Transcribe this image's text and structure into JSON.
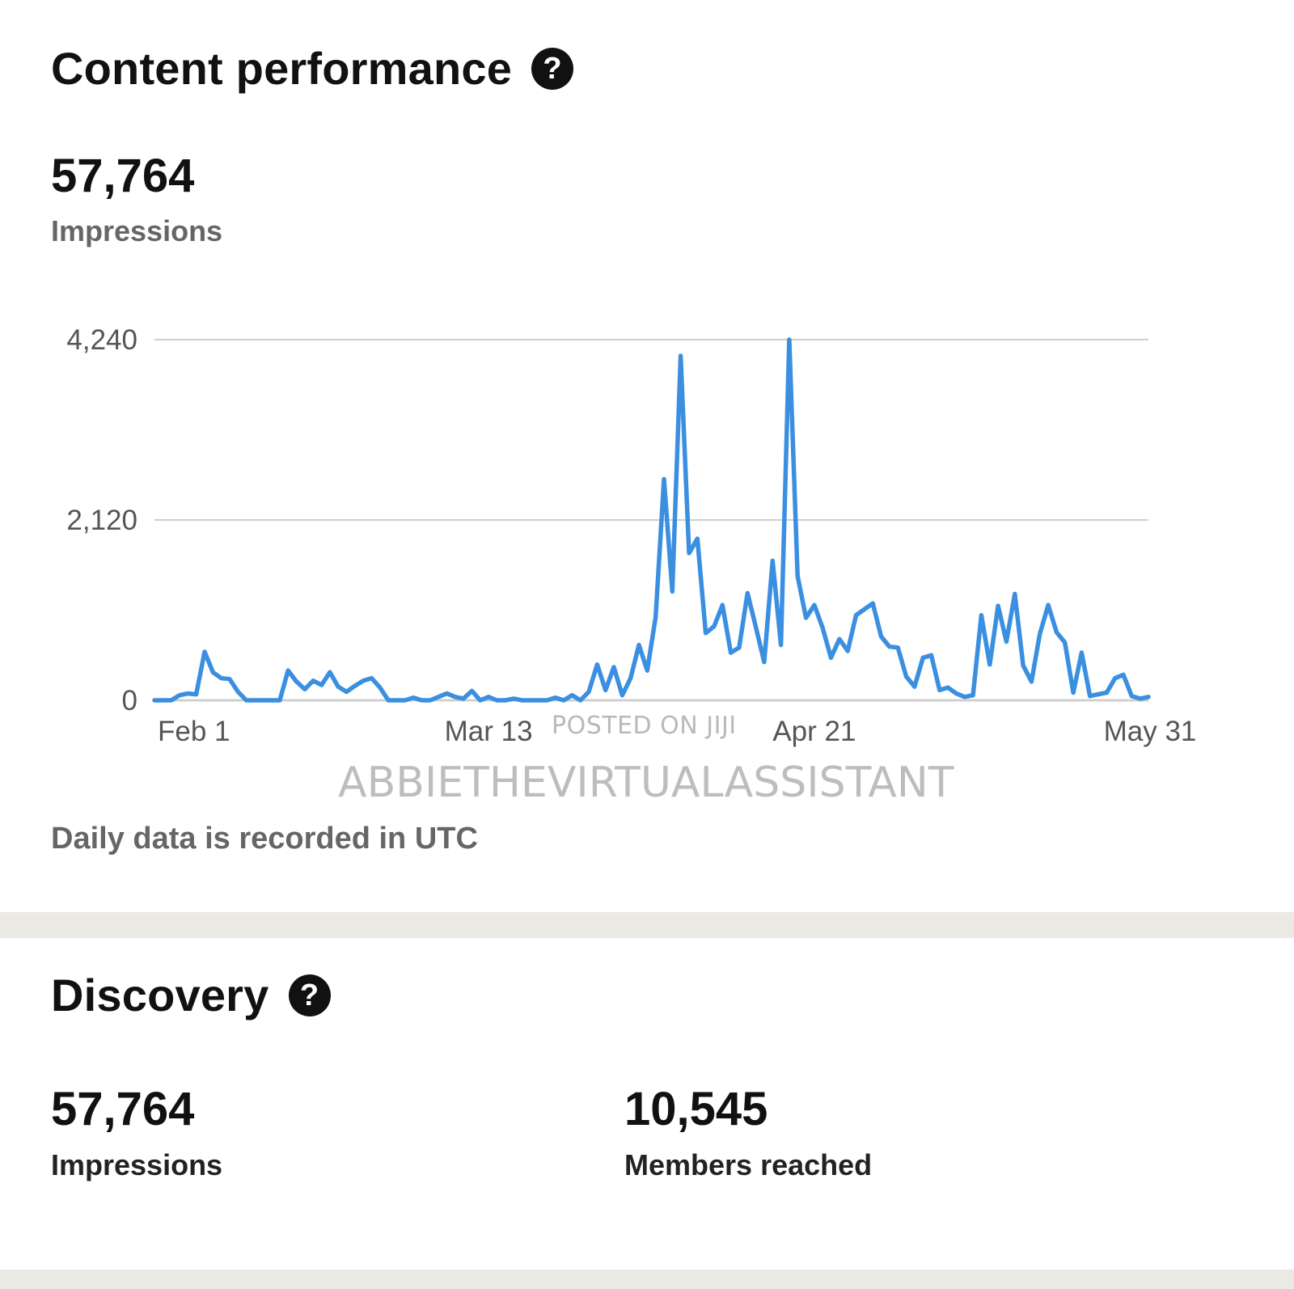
{
  "content_performance": {
    "title": "Content performance",
    "help_icon": "?",
    "impressions_value": "57,764",
    "impressions_label": "Impressions",
    "footnote": "Daily data is recorded in UTC"
  },
  "watermark": {
    "line1": "POSTED ON JIJI",
    "line2": "ABBIETHEVIRTUALASSISTANT"
  },
  "discovery": {
    "title": "Discovery",
    "help_icon": "?",
    "impressions_value": "57,764",
    "impressions_label": "Impressions",
    "members_value": "10,545",
    "members_label": "Members reached"
  },
  "colors": {
    "line": "#3b8fe0",
    "grid": "#cfcfcf",
    "separator": "#ebe9e4"
  },
  "chart_data": {
    "type": "line",
    "title": "",
    "xlabel": "",
    "ylabel": "",
    "y_ticks": [
      {
        "value": 0,
        "label": "0"
      },
      {
        "value": 2120,
        "label": "2,120"
      },
      {
        "value": 4240,
        "label": "4,240"
      }
    ],
    "x_ticks": [
      {
        "day": 0,
        "label": "Feb 1"
      },
      {
        "day": 40,
        "label": "Mar 13"
      },
      {
        "day": 79,
        "label": "Apr 21"
      },
      {
        "day": 119,
        "label": "May 31"
      }
    ],
    "ylim": [
      0,
      4240
    ],
    "grid": true,
    "legend": "none",
    "series": [
      {
        "values": [
          0,
          0,
          0,
          60,
          80,
          70,
          570,
          330,
          260,
          250,
          100,
          0,
          0,
          0,
          0,
          0,
          350,
          220,
          130,
          230,
          180,
          330,
          160,
          100,
          170,
          230,
          260,
          150,
          0,
          0,
          0,
          30,
          0,
          0,
          40,
          80,
          40,
          20,
          110,
          0,
          40,
          0,
          0,
          20,
          0,
          0,
          0,
          0,
          30,
          0,
          60,
          0,
          100,
          420,
          120,
          390,
          60,
          260,
          650,
          350,
          980,
          2600,
          1280,
          4050,
          1730,
          1900,
          790,
          870,
          1120,
          560,
          620,
          1260,
          860,
          450,
          1640,
          650,
          4240,
          1460,
          970,
          1120,
          850,
          500,
          720,
          580,
          1000,
          1070,
          1140,
          750,
          630,
          620,
          280,
          160,
          500,
          530,
          120,
          150,
          80,
          40,
          60,
          1000,
          420,
          1110,
          690,
          1250,
          410,
          220,
          780,
          1120,
          800,
          680,
          90,
          560,
          50,
          70,
          90,
          260,
          300,
          50,
          20,
          40
        ]
      }
    ]
  }
}
